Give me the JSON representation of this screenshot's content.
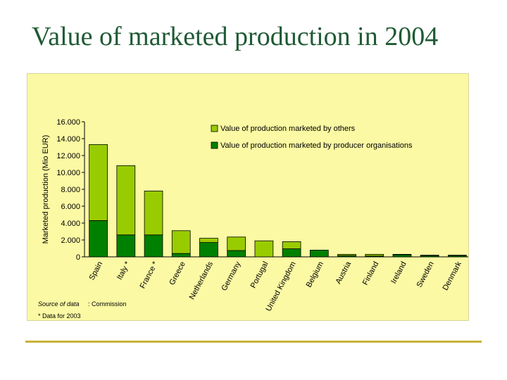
{
  "slide": {
    "title": "Value of marketed production in 2004"
  },
  "colors": {
    "others": "#99cc00",
    "po": "#008000",
    "stroke": "#000000",
    "panel": "#fbf9a3",
    "title": "#1f5a34",
    "rule": "#c8b23a"
  },
  "chart_data": {
    "type": "bar",
    "stacked": true,
    "title": "",
    "xlabel": "",
    "ylabel": "Marketed production (Mio EUR)",
    "ylim": [
      0,
      16000
    ],
    "yticks": [
      0,
      2000,
      4000,
      6000,
      8000,
      10000,
      12000,
      14000,
      16000
    ],
    "ytick_labels": [
      "0",
      "2.000",
      "4.000",
      "6.000",
      "8.000",
      "10.000",
      "12.000",
      "14.000",
      "16.000"
    ],
    "categories": [
      "Spain",
      "Italy *",
      "France *",
      "Greece",
      "Netherlands",
      "Germany",
      "Portugal",
      "United Kingdom",
      "Belgium",
      "Austria",
      "Finland",
      "Ireland",
      "Sweden",
      "Denmark"
    ],
    "series": [
      {
        "name": "Value of production marketed by producer organisations",
        "values": [
          4300,
          2600,
          2600,
          400,
          1700,
          750,
          0,
          950,
          800,
          150,
          100,
          250,
          150,
          150
        ]
      },
      {
        "name": "Value of production marketed by others",
        "values": [
          9000,
          8200,
          5200,
          2700,
          500,
          1600,
          1900,
          850,
          0,
          150,
          200,
          50,
          50,
          50
        ]
      }
    ],
    "legend_position": "top-right",
    "grid": false,
    "source_label": "Source of data",
    "source_value": ": Commission",
    "footnote": "* Data for 2003"
  }
}
